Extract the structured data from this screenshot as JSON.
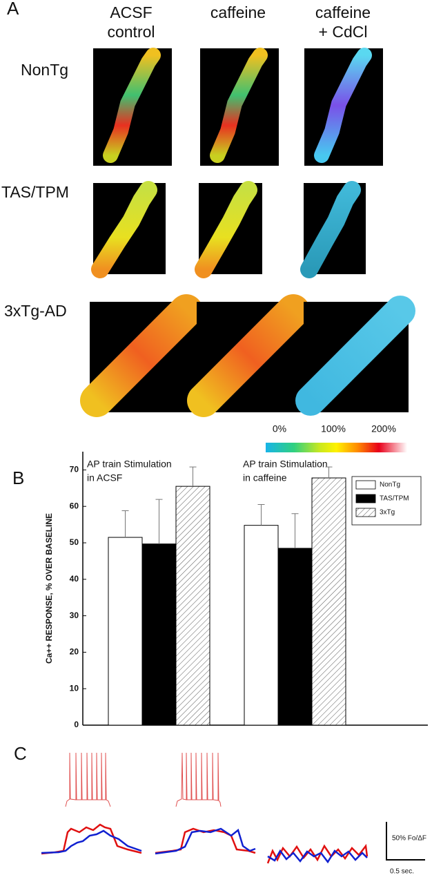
{
  "panel_a": {
    "label": "A",
    "columns": [
      [
        "ACSF",
        "control"
      ],
      [
        "caffeine"
      ],
      [
        "caffeine",
        "+ CdCl"
      ]
    ],
    "rows": [
      "NonTg",
      "TAS/TPM",
      "3xTg-AD"
    ],
    "colorbar_labels": [
      "0%",
      "100%",
      "200%"
    ]
  },
  "chart_data": {
    "type": "bar",
    "panel_label": "B",
    "ylabel": "Ca++ RESPONSE, % OVER BASELINE",
    "annotations": [
      [
        "AP train Stimulation",
        "in ACSF"
      ],
      [
        "AP train Stimulation",
        "in caffeine"
      ]
    ],
    "categories": [
      null,
      null
    ],
    "series": [
      {
        "name": "NonTg",
        "color": "#ffffff",
        "values": [
          51.5,
          54.8
        ],
        "errors": [
          7.3,
          5.7
        ]
      },
      {
        "name": "TAS/TPM",
        "color": "#000000",
        "values": [
          49.7,
          48.5
        ],
        "errors": [
          12.2,
          9.5
        ]
      },
      {
        "name": "3xTg",
        "color": "hatch",
        "values": [
          65.5,
          67.8
        ],
        "errors": [
          5.3,
          3.0
        ]
      }
    ],
    "ylim": [
      0,
      75
    ],
    "yticks": [
      0,
      10,
      20,
      30,
      40,
      50,
      60,
      70
    ],
    "legend": "upper right"
  },
  "panel_c": {
    "label": "C",
    "scale_y": "50% Fo/ΔF",
    "scale_x": "0.5 sec."
  }
}
